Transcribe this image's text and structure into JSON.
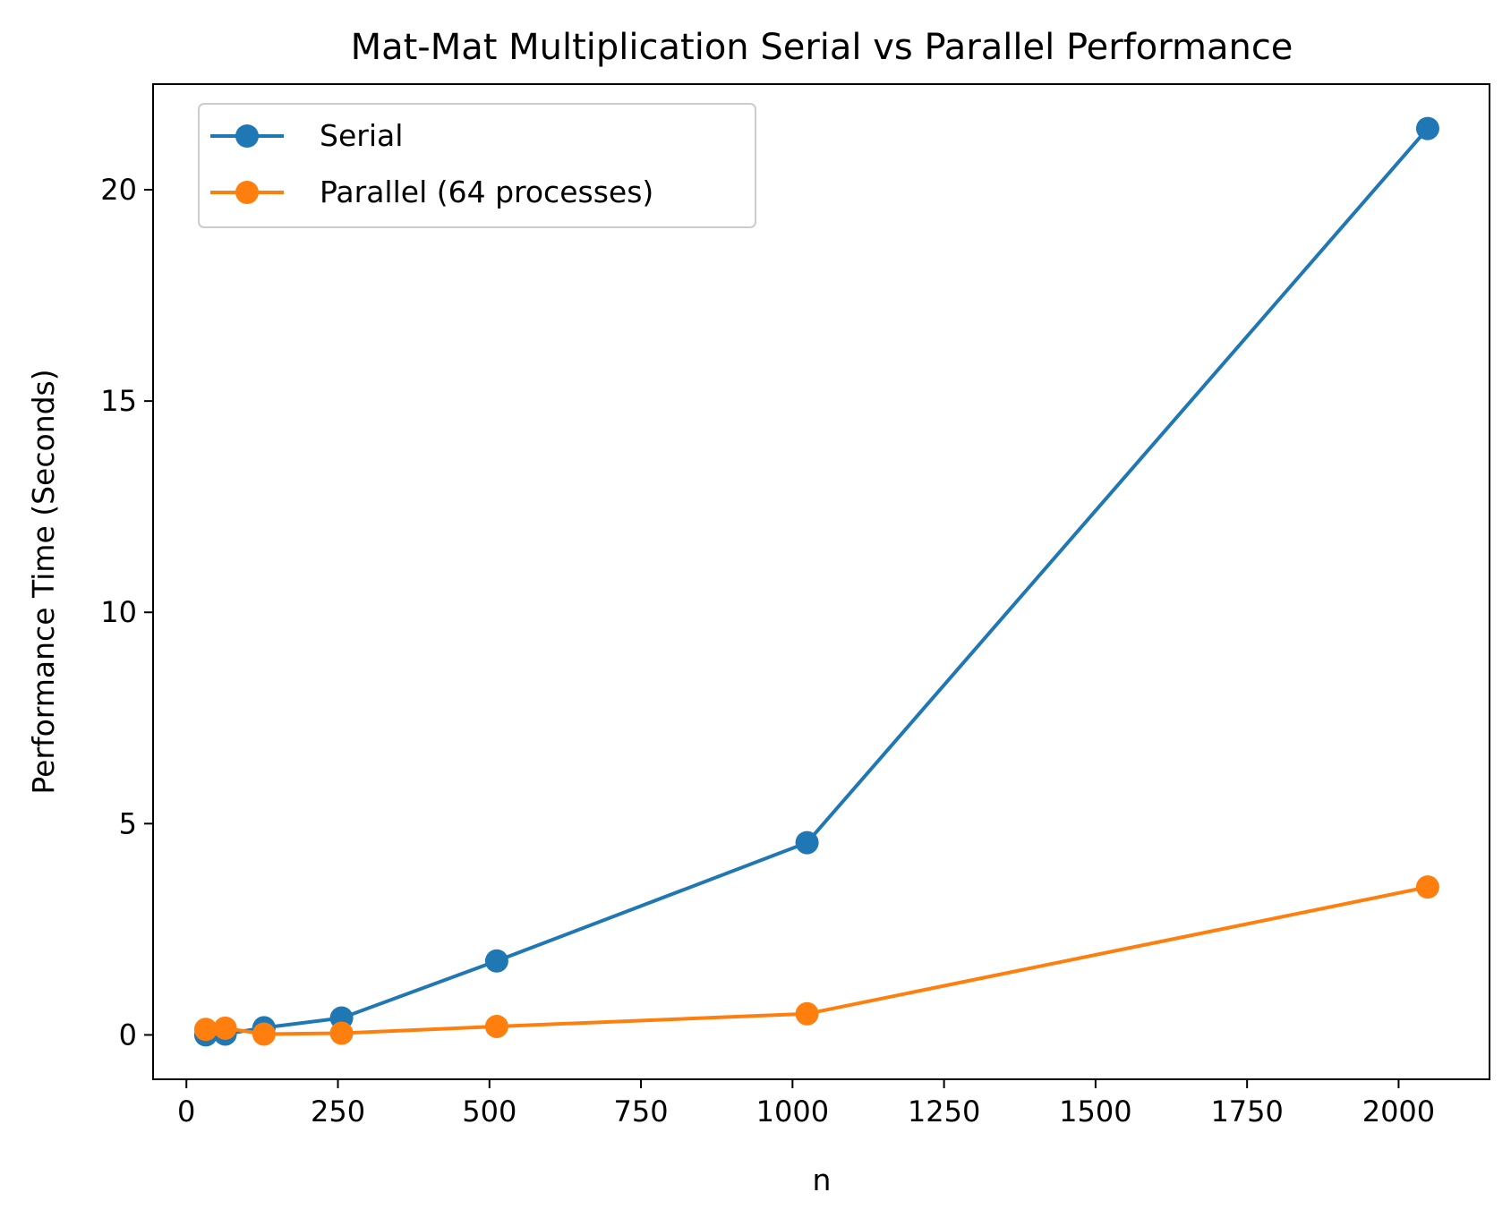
{
  "chart_data": {
    "type": "line",
    "title": "Mat-Mat Multiplication Serial vs Parallel Performance",
    "xlabel": "n",
    "ylabel": "Performance Time (Seconds)",
    "xlim": [
      -55,
      2150
    ],
    "ylim": [
      -1.05,
      22.5
    ],
    "xticks": [
      0,
      250,
      500,
      750,
      1000,
      1250,
      1500,
      1750,
      2000
    ],
    "yticks": [
      0,
      5,
      10,
      15,
      20
    ],
    "grid": false,
    "legend_position": "top-left",
    "series": [
      {
        "name": "Serial",
        "color": "#1f77b4",
        "x": [
          32,
          64,
          128,
          256,
          512,
          1024,
          2048
        ],
        "y": [
          0.0,
          0.02,
          0.17,
          0.4,
          1.75,
          4.55,
          21.45
        ]
      },
      {
        "name": "Parallel (64 processes)",
        "color": "#ff7f0e",
        "x": [
          32,
          64,
          128,
          256,
          512,
          1024,
          2048
        ],
        "y": [
          0.13,
          0.16,
          0.02,
          0.04,
          0.2,
          0.5,
          3.5
        ]
      }
    ]
  }
}
